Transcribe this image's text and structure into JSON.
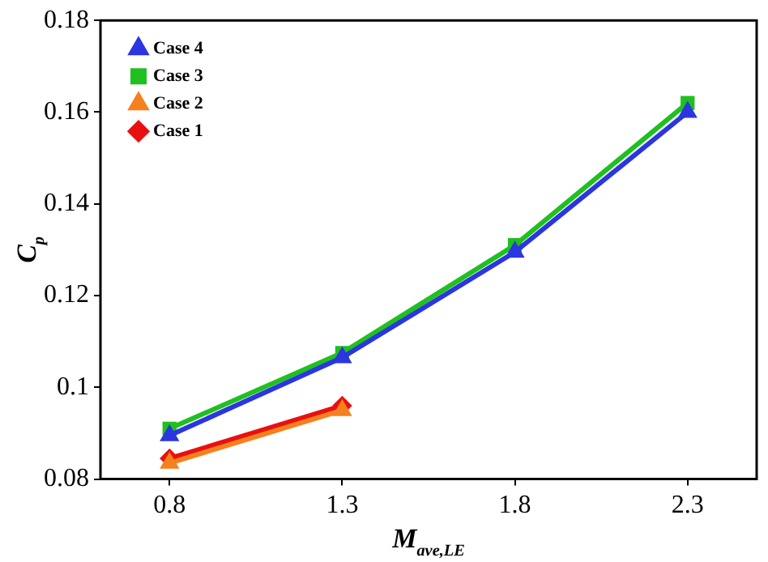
{
  "chart_data": {
    "type": "line",
    "xlabel": "M$_{ave,LE}$",
    "ylabel": "C$_{p}$",
    "series": [
      {
        "name": "Case 1",
        "color": "#e8110f",
        "marker": "diamond",
        "x": [
          0.8,
          1.3
        ],
        "values": [
          0.0845,
          0.096
        ]
      },
      {
        "name": "Case 2",
        "color": "#f5801e",
        "marker": "triangle",
        "x": [
          0.8,
          1.3
        ],
        "values": [
          0.0835,
          0.095
        ]
      },
      {
        "name": "Case 3",
        "color": "#1fc01f",
        "marker": "square",
        "x": [
          0.8,
          1.3,
          1.8,
          2.3
        ],
        "values": [
          0.091,
          0.1075,
          0.131,
          0.162
        ]
      },
      {
        "name": "Case 4",
        "color": "#2b35e0",
        "marker": "triangle",
        "x": [
          0.8,
          1.3,
          1.8,
          2.3
        ],
        "values": [
          0.0895,
          0.1065,
          0.1295,
          0.16
        ]
      }
    ],
    "xlim": [
      0.6,
      2.5
    ],
    "xticks": [
      0.8,
      1.3,
      1.8,
      2.3
    ],
    "ylim": [
      0.08,
      0.18
    ],
    "yticks": [
      0.08,
      0.1,
      0.12,
      0.14,
      0.16,
      0.18
    ],
    "grid": false,
    "legend": "top left",
    "line_style": "solid"
  }
}
